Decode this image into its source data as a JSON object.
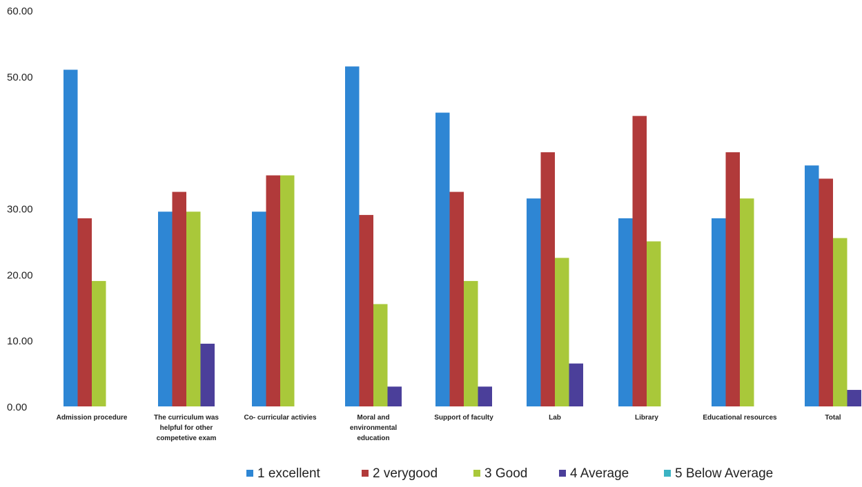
{
  "chart_data": {
    "type": "bar",
    "categories": [
      "Admission procedure",
      "The curriculum was helpful for other competetive exam",
      "Co- curricular activies",
      "Moral and environmental education",
      "Support of faculty",
      "Lab",
      "Library",
      "Educational resources",
      "Total"
    ],
    "category_lines": [
      [
        "Admission procedure"
      ],
      [
        "The curriculum was",
        "helpful for other",
        "competetive exam"
      ],
      [
        "Co- curricular activies"
      ],
      [
        "Moral and",
        "environmental",
        "education"
      ],
      [
        "Support of faculty"
      ],
      [
        "Lab"
      ],
      [
        "Library"
      ],
      [
        "Educational resources"
      ],
      [
        "Total"
      ]
    ],
    "series": [
      {
        "name": "1  excellent",
        "color": "#2e86d4",
        "values": [
          51,
          29.5,
          29.5,
          51.5,
          44.5,
          31.5,
          28.5,
          28.5,
          36.5
        ]
      },
      {
        "name": "2  verygood",
        "color": "#b13a3a",
        "values": [
          28.5,
          32.5,
          35,
          29,
          32.5,
          38.5,
          44,
          38.5,
          34.5
        ]
      },
      {
        "name": "3 Good",
        "color": "#a9c83a",
        "values": [
          19,
          29.5,
          35,
          15.5,
          19,
          22.5,
          25,
          31.5,
          25.5
        ]
      },
      {
        "name": "4 Average",
        "color": "#4b3f9a",
        "values": [
          0,
          9.5,
          0,
          3,
          3,
          6.5,
          0,
          0,
          2.5
        ]
      },
      {
        "name": "5 Below Average",
        "color": "#3bb3c3",
        "values": [
          0,
          0,
          0,
          0,
          0,
          0,
          0,
          0,
          0
        ]
      }
    ],
    "yticks": [
      "0.00",
      "10.00",
      "20.00",
      "30.00",
      "50.00",
      "60.00"
    ],
    "ylim": [
      0,
      60
    ],
    "grid": false,
    "legend_position": "bottom"
  }
}
